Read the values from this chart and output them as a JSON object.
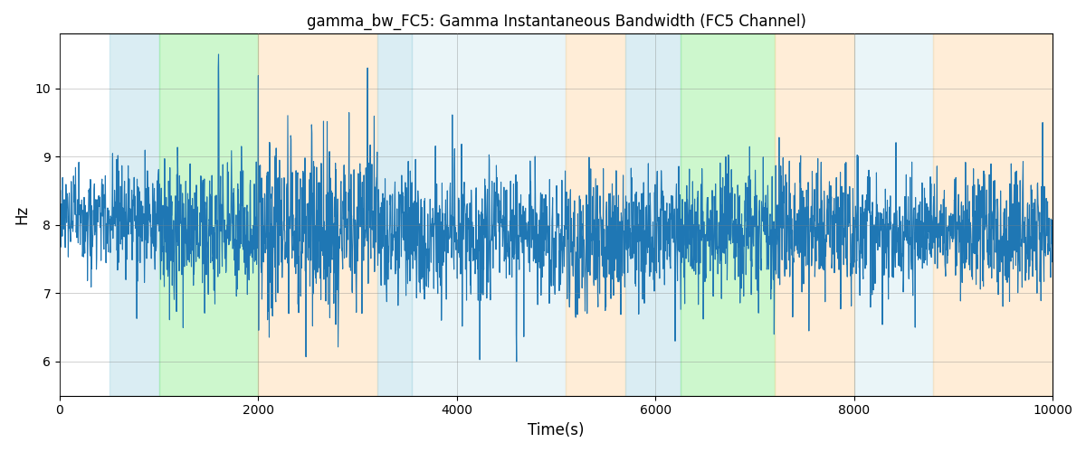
{
  "title": "gamma_bw_FC5: Gamma Instantaneous Bandwidth (FC5 Channel)",
  "xlabel": "Time(s)",
  "ylabel": "Hz",
  "xlim": [
    0,
    10000
  ],
  "ylim": [
    5.5,
    10.8
  ],
  "yticks": [
    6,
    7,
    8,
    9,
    10
  ],
  "xticks": [
    0,
    2000,
    4000,
    6000,
    8000,
    10000
  ],
  "line_color": "#1f77b4",
  "line_width": 0.8,
  "background_regions": [
    {
      "start": 500,
      "end": 1000,
      "color": "#add8e6",
      "alpha": 0.45
    },
    {
      "start": 1000,
      "end": 2000,
      "color": "#90ee90",
      "alpha": 0.45
    },
    {
      "start": 2000,
      "end": 3200,
      "color": "#ffd8a8",
      "alpha": 0.45
    },
    {
      "start": 3200,
      "end": 3550,
      "color": "#add8e6",
      "alpha": 0.45
    },
    {
      "start": 3550,
      "end": 5100,
      "color": "#add8e6",
      "alpha": 0.25
    },
    {
      "start": 5100,
      "end": 5700,
      "color": "#ffd8a8",
      "alpha": 0.45
    },
    {
      "start": 5700,
      "end": 6250,
      "color": "#add8e6",
      "alpha": 0.45
    },
    {
      "start": 6250,
      "end": 7200,
      "color": "#90ee90",
      "alpha": 0.45
    },
    {
      "start": 7200,
      "end": 8000,
      "color": "#ffd8a8",
      "alpha": 0.45
    },
    {
      "start": 8000,
      "end": 8800,
      "color": "#add8e6",
      "alpha": 0.25
    },
    {
      "start": 8800,
      "end": 10100,
      "color": "#ffd8a8",
      "alpha": 0.45
    }
  ],
  "seed": 12345,
  "n_points": 3000,
  "base_mean": 8.0
}
